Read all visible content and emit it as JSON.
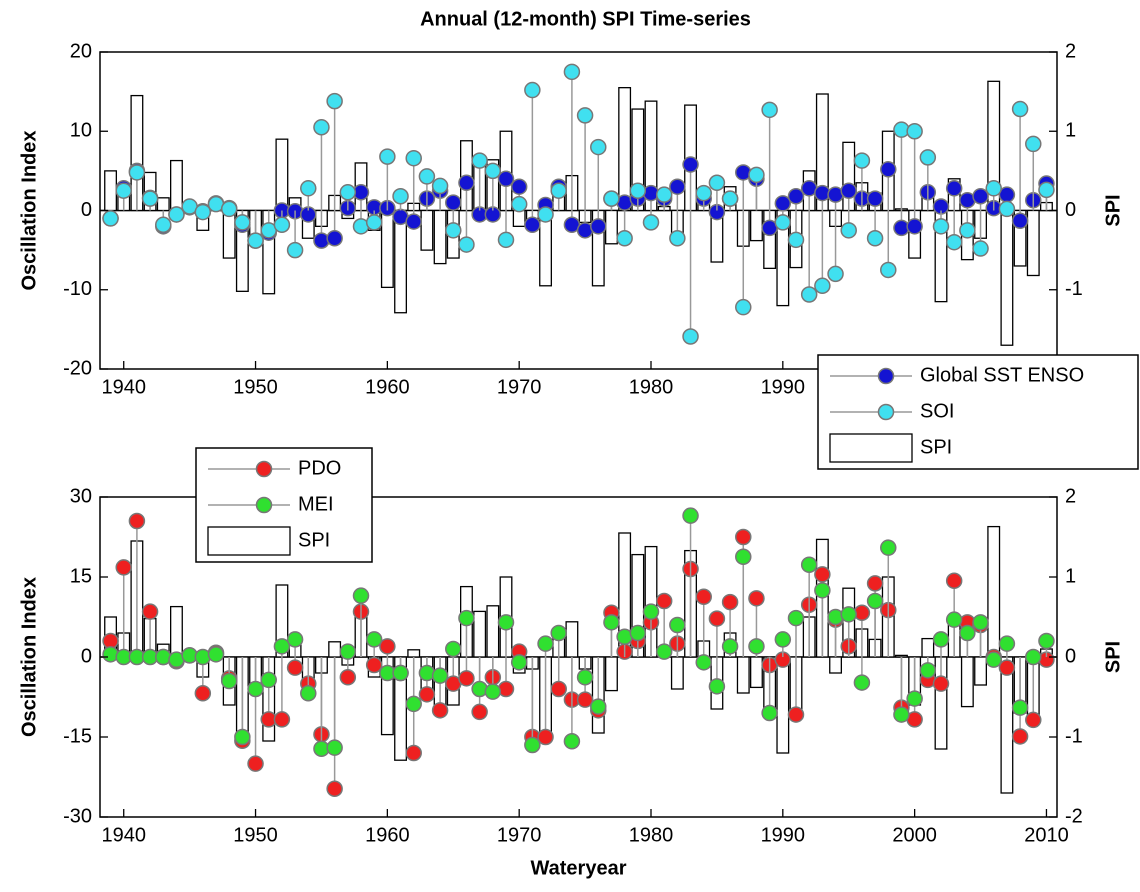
{
  "chart_data": [
    {
      "type": "stem-bar",
      "title": "Annual (12-month) SPI Time-series",
      "y_label": "Oscillation Index",
      "y2_label": "SPI",
      "x": [
        1939,
        1940,
        1941,
        1942,
        1943,
        1944,
        1945,
        1946,
        1947,
        1948,
        1949,
        1950,
        1951,
        1952,
        1953,
        1954,
        1955,
        1956,
        1957,
        1958,
        1959,
        1960,
        1961,
        1962,
        1963,
        1964,
        1965,
        1966,
        1967,
        1968,
        1969,
        1970,
        1971,
        1972,
        1973,
        1974,
        1975,
        1976,
        1977,
        1978,
        1979,
        1980,
        1981,
        1982,
        1983,
        1984,
        1985,
        1986,
        1987,
        1988,
        1989,
        1990,
        1991,
        1992,
        1993,
        1994,
        1995,
        1996,
        1997,
        1998,
        1999,
        2000,
        2001,
        2002,
        2003,
        2004,
        2005,
        2006,
        2007,
        2008,
        2009,
        2010
      ],
      "xlim": [
        1938.2,
        2010.8
      ],
      "xticks": [
        1940,
        1950,
        1960,
        1970,
        1980,
        1990,
        2000,
        2010
      ],
      "ylim": [
        -20,
        20
      ],
      "yticks": [
        -20,
        -10,
        0,
        10,
        20
      ],
      "y2lim": [
        -2,
        2
      ],
      "y2ticks": [
        -2,
        -1,
        0,
        1,
        2
      ],
      "legend": "lower right",
      "series": [
        {
          "name": "Global SST ENSO",
          "color": "#1414d2",
          "values": [
            -1.0,
            2.8,
            5.0,
            1.6,
            -2.0,
            -0.5,
            0.4,
            -0.1,
            0.9,
            0.3,
            -1.8,
            -3.8,
            -2.8,
            0,
            -0.1,
            -0.5,
            -3.8,
            -3.5,
            0.3,
            2.3,
            0.4,
            0.3,
            -0.8,
            -1.4,
            1.5,
            2.5,
            1.0,
            3.5,
            -0.5,
            -0.5,
            4.0,
            3.0,
            -1.8,
            0.7,
            3.0,
            -1.8,
            -2.5,
            -2.0,
            1.5,
            1.0,
            1.5,
            2.2,
            1.5,
            3.0,
            5.8,
            1.5,
            -0.2,
            1.5,
            4.8,
            4.0,
            -2.2,
            0.9,
            1.8,
            2.8,
            2.2,
            2.0,
            2.5,
            1.5,
            1.5,
            5.2,
            -2.2,
            -2.0,
            2.3,
            0.5,
            2.8,
            1.3,
            1.8,
            0.3,
            2.0,
            -1.3,
            1.3,
            3.4
          ]
        },
        {
          "name": "SOI",
          "color": "#40e0f0",
          "values": [
            -1.0,
            2.5,
            4.8,
            1.5,
            -1.8,
            -0.5,
            0.5,
            -0.2,
            0.8,
            0.2,
            -1.5,
            -3.8,
            -2.5,
            -1.8,
            -5.0,
            2.8,
            10.5,
            13.8,
            2.3,
            -2.0,
            -1.5,
            6.8,
            1.8,
            6.6,
            4.3,
            3.1,
            -2.5,
            -4.3,
            6.3,
            5.0,
            -3.7,
            0.8,
            15.2,
            -0.5,
            2.5,
            17.5,
            12.0,
            8.0,
            1.5,
            -3.5,
            2.5,
            -1.5,
            2.0,
            -3.5,
            -15.9,
            2.2,
            3.5,
            1.5,
            -12.2,
            4.5,
            12.7,
            -1.5,
            -3.7,
            -10.6,
            -9.5,
            -8.0,
            -2.5,
            6.3,
            -3.5,
            -7.5,
            10.2,
            10.0,
            6.7,
            -2.0,
            -4.0,
            -2.5,
            -4.8,
            2.8,
            0.2,
            12.8,
            8.4,
            2.6
          ]
        },
        {
          "name": "SPI",
          "color": "#ffffff",
          "axis": "y2",
          "values": [
            0.5,
            0.3,
            1.45,
            0.48,
            0.16,
            0.63,
            0.05,
            -0.25,
            0.1,
            -0.6,
            -1.02,
            -0.44,
            -1.05,
            0.9,
            0.16,
            -0.35,
            -0.2,
            0.19,
            -0.1,
            0.6,
            -0.25,
            -0.97,
            -1.29,
            0.09,
            -0.5,
            -0.67,
            -0.6,
            0.88,
            0.57,
            0.64,
            1.0,
            -0.2,
            -0.15,
            -0.95,
            0.28,
            0.44,
            -0.15,
            -0.95,
            -0.42,
            1.55,
            1.28,
            1.38,
            0.05,
            -0.4,
            1.33,
            0.2,
            -0.65,
            0.3,
            -0.45,
            -0.38,
            -0.73,
            -1.2,
            -0.72,
            0.5,
            1.47,
            -0.2,
            0.86,
            0.35,
            0.22,
            1.0,
            0.02,
            -0.6,
            0.23,
            -1.15,
            0.4,
            -0.62,
            -0.35,
            1.63,
            -1.7,
            -0.7,
            -0.82,
            0.1
          ]
        }
      ]
    },
    {
      "type": "stem-bar",
      "x_label": "Wateryear",
      "y_label": "Oscillation Index",
      "y2_label": "SPI",
      "x": [
        1939,
        1940,
        1941,
        1942,
        1943,
        1944,
        1945,
        1946,
        1947,
        1948,
        1949,
        1950,
        1951,
        1952,
        1953,
        1954,
        1955,
        1956,
        1957,
        1958,
        1959,
        1960,
        1961,
        1962,
        1963,
        1964,
        1965,
        1966,
        1967,
        1968,
        1969,
        1970,
        1971,
        1972,
        1973,
        1974,
        1975,
        1976,
        1977,
        1978,
        1979,
        1980,
        1981,
        1982,
        1983,
        1984,
        1985,
        1986,
        1987,
        1988,
        1989,
        1990,
        1991,
        1992,
        1993,
        1994,
        1995,
        1996,
        1997,
        1998,
        1999,
        2000,
        2001,
        2002,
        2003,
        2004,
        2005,
        2006,
        2007,
        2008,
        2009,
        2010
      ],
      "xlim": [
        1938.2,
        2010.8
      ],
      "xticks": [
        1940,
        1950,
        1960,
        1970,
        1980,
        1990,
        2000,
        2010
      ],
      "ylim": [
        -30,
        30
      ],
      "yticks": [
        -30,
        -15,
        0,
        15,
        30
      ],
      "y2lim": [
        -2,
        2
      ],
      "y2ticks": [
        -2,
        -1,
        0,
        1,
        2
      ],
      "legend": "upper left",
      "series": [
        {
          "name": "PDO",
          "color": "#ee2020",
          "values": [
            3.0,
            16.8,
            25.5,
            8.5,
            0,
            -0.8,
            0.3,
            -6.8,
            0.8,
            -4.0,
            -15.7,
            -20.0,
            -11.7,
            -11.7,
            -2.0,
            -5.0,
            -14.5,
            -24.7,
            -3.8,
            8.5,
            -1.5,
            2.0,
            -3.0,
            -18.0,
            -7.0,
            -10.0,
            -5.0,
            -4.0,
            -10.3,
            -3.8,
            -6.0,
            1.0,
            -15.0,
            -15.0,
            -6.0,
            -8.0,
            -8.0,
            -10.0,
            8.3,
            1.0,
            3.0,
            6.5,
            10.5,
            2.5,
            16.5,
            11.3,
            7.2,
            10.3,
            22.5,
            11.0,
            -1.5,
            -0.5,
            -10.8,
            9.8,
            15.5,
            7.0,
            2.0,
            8.3,
            13.8,
            8.8,
            -9.5,
            -11.7,
            -4.3,
            -5.0,
            14.3,
            6.5,
            6.0,
            0,
            -2.0,
            -14.9,
            -11.8,
            -0.5
          ]
        },
        {
          "name": "MEI",
          "color": "#30e030",
          "values": [
            0.5,
            0,
            0,
            0,
            0,
            -0.5,
            0.3,
            0,
            0.5,
            -4.5,
            -15.0,
            -6.0,
            -4.3,
            2.0,
            3.3,
            -6.8,
            -17.2,
            -17.0,
            1.0,
            11.5,
            3.3,
            -3.0,
            -3.0,
            -8.8,
            -3.0,
            -3.5,
            1.5,
            7.3,
            -6.0,
            -6.5,
            6.5,
            -1.0,
            -16.5,
            2.5,
            4.5,
            -15.8,
            -3.8,
            -9.3,
            6.5,
            3.8,
            4.5,
            8.5,
            1.0,
            6.0,
            26.5,
            -1.0,
            -5.5,
            2.0,
            18.8,
            2.0,
            -10.5,
            3.3,
            7.3,
            17.3,
            12.5,
            7.5,
            8.0,
            -4.8,
            10.5,
            20.5,
            -10.8,
            -7.8,
            -2.5,
            3.3,
            7.0,
            4.5,
            6.5,
            -0.5,
            2.5,
            -9.5,
            0,
            3.0
          ]
        },
        {
          "name": "SPI",
          "color": "#ffffff",
          "axis": "y2",
          "values": [
            0.5,
            0.3,
            1.45,
            0.48,
            0.16,
            0.63,
            0.05,
            -0.25,
            0.1,
            -0.6,
            -1.02,
            -0.44,
            -1.05,
            0.9,
            0.16,
            -0.35,
            -0.2,
            0.19,
            -0.1,
            0.6,
            -0.25,
            -0.97,
            -1.29,
            0.09,
            -0.5,
            -0.67,
            -0.6,
            0.88,
            0.57,
            0.64,
            1.0,
            -0.2,
            -0.15,
            -0.95,
            0.28,
            0.44,
            -0.15,
            -0.95,
            -0.42,
            1.55,
            1.28,
            1.38,
            0.05,
            -0.4,
            1.33,
            0.2,
            -0.65,
            0.3,
            -0.45,
            -0.38,
            -0.73,
            -1.2,
            -0.72,
            0.5,
            1.47,
            -0.2,
            0.86,
            0.35,
            0.22,
            1.0,
            0.02,
            -0.6,
            0.23,
            -1.15,
            0.4,
            -0.62,
            -0.35,
            1.63,
            -1.7,
            -0.7,
            -0.82,
            0.1
          ]
        }
      ]
    }
  ]
}
